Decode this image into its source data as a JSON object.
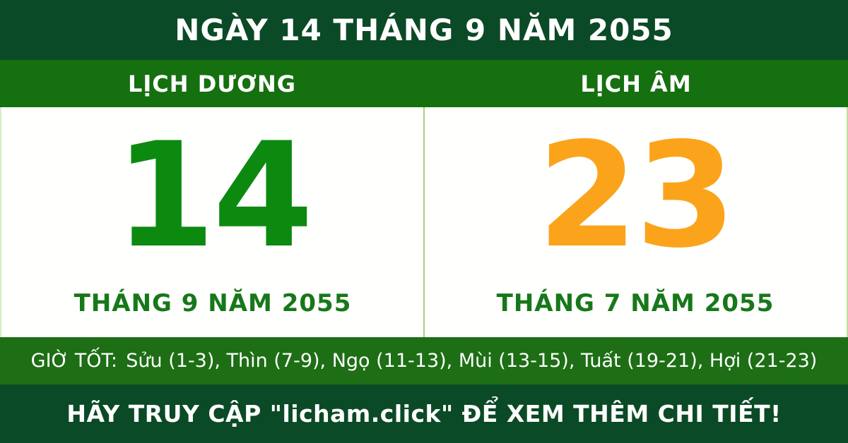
{
  "header": {
    "title": "NGÀY 14 THÁNG 9 NĂM 2055"
  },
  "calendar": {
    "solar": {
      "tab_label": "LỊCH DƯƠNG",
      "day": "14",
      "month_year": "THÁNG 9 NĂM 2055",
      "day_color": "#0c8a10"
    },
    "lunar": {
      "tab_label": "LỊCH ÂM",
      "day": "23",
      "month_year": "THÁNG 7 NĂM 2055",
      "day_color": "#fba41b"
    }
  },
  "good_hours": {
    "label": "GIỜ TỐT:",
    "value": "Sửu (1-3), Thìn (7-9), Ngọ (11-13), Mùi (13-15), Tuất (19-21), Hợi (21-23)"
  },
  "footer": {
    "text": "HÃY TRUY CẬP \"licham.click\" ĐỂ XEM THÊM CHI TIẾT!"
  },
  "colors": {
    "header_background": "#0b4a26",
    "tab_bar_background": "#15700f",
    "hours_bar_background": "#1d6e15",
    "footer_background": "#0b4a26",
    "solar_day_green": "#0c8a10",
    "lunar_day_orange": "#fba41b",
    "month_text_green": "#17781a",
    "divider_light_green": "#a3d57e",
    "text_on_green": "#ffffff"
  }
}
